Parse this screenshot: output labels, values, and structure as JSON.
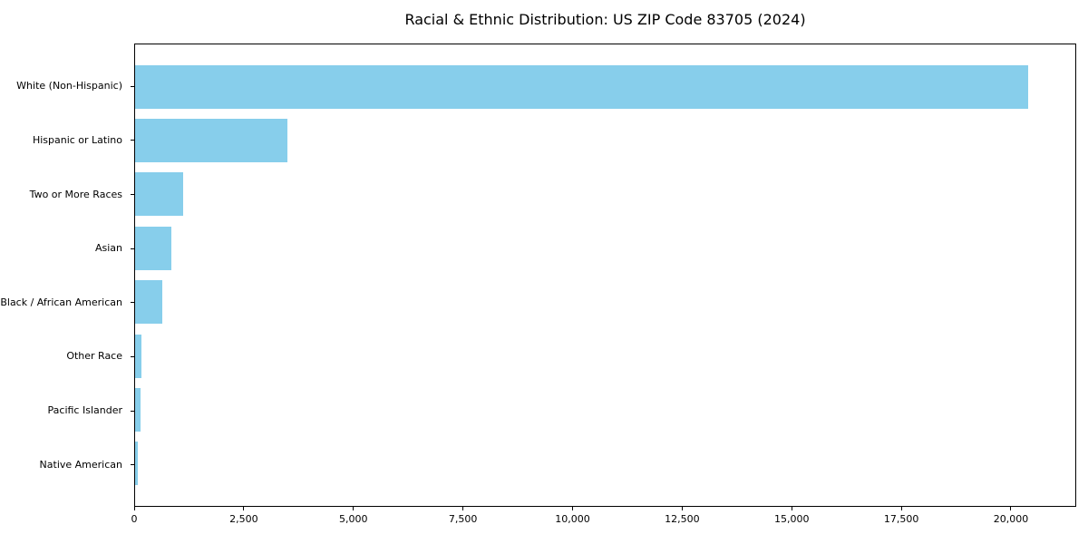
{
  "chart_data": {
    "type": "bar",
    "orientation": "horizontal",
    "title": "Racial & Ethnic Distribution: US ZIP Code 83705 (2024)",
    "categories": [
      "White (Non-Hispanic)",
      "Hispanic or Latino",
      "Two or More Races",
      "Asian",
      "Black / African American",
      "Other Race",
      "Pacific Islander",
      "Native American"
    ],
    "values": [
      20410,
      3480,
      1100,
      830,
      620,
      140,
      120,
      55
    ],
    "xlabel": "",
    "ylabel": "",
    "xlim": [
      0,
      21490
    ],
    "x_ticks": [
      0,
      2500,
      5000,
      7500,
      10000,
      12500,
      15000,
      17500,
      20000
    ],
    "x_tick_labels": [
      "0",
      "2,500",
      "5,000",
      "7,500",
      "10,000",
      "12,500",
      "15,000",
      "17,500",
      "20,000"
    ],
    "bar_color": "#87CEEB",
    "text_color": "#000000",
    "grid": false,
    "legend": null
  }
}
